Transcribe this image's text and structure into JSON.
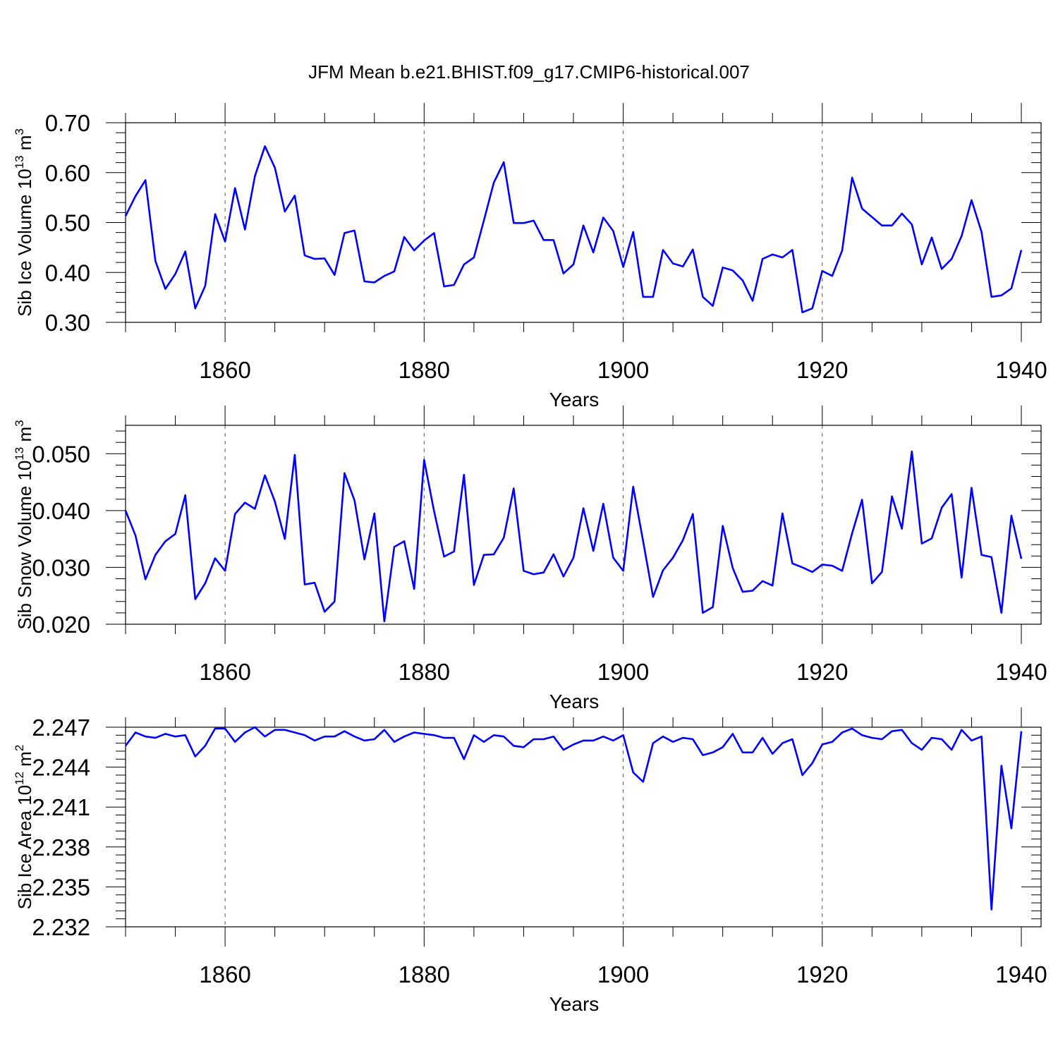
{
  "title": "JFM Mean b.e21.BHIST.f09_g17.CMIP6-historical.007",
  "chart_data": [
    {
      "type": "line",
      "ylabel": "Sib Ice Volume 10",
      "ylabel_exp": "13",
      "ylabel_unit": " m",
      "ylabel_unit_exp": "3",
      "xlabel": "Years",
      "xlim": [
        1850,
        1940
      ],
      "ylim": [
        0.3,
        0.7
      ],
      "yticks": [
        0.3,
        0.4,
        0.5,
        0.6,
        0.7
      ],
      "ytick_labels": [
        "0.30",
        "0.40",
        "0.50",
        "0.60",
        "0.70"
      ],
      "xticks": [
        1860,
        1880,
        1900,
        1920,
        1940
      ],
      "xtick_labels": [
        "1860",
        "1880",
        "1900",
        "1920",
        "1940"
      ],
      "grid": "dashed vertical at major x ticks",
      "color": "#0000ff",
      "x": [
        1850,
        1851,
        1852,
        1853,
        1854,
        1855,
        1856,
        1857,
        1858,
        1859,
        1860,
        1861,
        1862,
        1863,
        1864,
        1865,
        1866,
        1867,
        1868,
        1869,
        1870,
        1871,
        1872,
        1873,
        1874,
        1875,
        1876,
        1877,
        1878,
        1879,
        1880,
        1881,
        1882,
        1883,
        1884,
        1885,
        1886,
        1887,
        1888,
        1889,
        1890,
        1891,
        1892,
        1893,
        1894,
        1895,
        1896,
        1897,
        1898,
        1899,
        1900,
        1901,
        1902,
        1903,
        1904,
        1905,
        1906,
        1907,
        1908,
        1909,
        1910,
        1911,
        1912,
        1913,
        1914,
        1915,
        1916,
        1917,
        1918,
        1919,
        1920,
        1921,
        1922,
        1923,
        1924,
        1925,
        1926,
        1927,
        1928,
        1929,
        1930,
        1931,
        1932,
        1933,
        1934,
        1935,
        1936,
        1937,
        1938,
        1939,
        1940
      ],
      "values": [
        0.513,
        0.553,
        0.585,
        0.423,
        0.367,
        0.397,
        0.442,
        0.328,
        0.373,
        0.517,
        0.462,
        0.569,
        0.486,
        0.593,
        0.653,
        0.61,
        0.522,
        0.554,
        0.434,
        0.427,
        0.428,
        0.395,
        0.479,
        0.484,
        0.382,
        0.38,
        0.393,
        0.402,
        0.471,
        0.444,
        0.464,
        0.479,
        0.372,
        0.375,
        0.416,
        0.43,
        0.504,
        0.58,
        0.621,
        0.499,
        0.499,
        0.504,
        0.465,
        0.465,
        0.398,
        0.416,
        0.494,
        0.44,
        0.51,
        0.483,
        0.411,
        0.481,
        0.351,
        0.351,
        0.445,
        0.418,
        0.412,
        0.446,
        0.351,
        0.333,
        0.41,
        0.404,
        0.384,
        0.343,
        0.427,
        0.436,
        0.43,
        0.445,
        0.32,
        0.328,
        0.403,
        0.393,
        0.444,
        0.59,
        0.528,
        0.511,
        0.494,
        0.494,
        0.518,
        0.496,
        0.416,
        0.47,
        0.407,
        0.427,
        0.473,
        0.545,
        0.481,
        0.351,
        0.354,
        0.368,
        0.445
      ]
    },
    {
      "type": "line",
      "ylabel": "Sib Snow Volume 10",
      "ylabel_exp": "13",
      "ylabel_unit": " m",
      "ylabel_unit_exp": "3",
      "xlabel": "Years",
      "xlim": [
        1850,
        1940
      ],
      "ylim": [
        0.02,
        0.055
      ],
      "yticks": [
        0.02,
        0.03,
        0.04,
        0.05
      ],
      "ytick_labels": [
        "0.020",
        "0.030",
        "0.040",
        "0.050"
      ],
      "xticks": [
        1860,
        1880,
        1900,
        1920,
        1940
      ],
      "xtick_labels": [
        "1860",
        "1880",
        "1900",
        "1920",
        "1940"
      ],
      "grid": "dashed vertical at major x ticks",
      "color": "#0000ff",
      "x": [
        1850,
        1851,
        1852,
        1853,
        1854,
        1855,
        1856,
        1857,
        1858,
        1859,
        1860,
        1861,
        1862,
        1863,
        1864,
        1865,
        1866,
        1867,
        1868,
        1869,
        1870,
        1871,
        1872,
        1873,
        1874,
        1875,
        1876,
        1877,
        1878,
        1879,
        1880,
        1881,
        1882,
        1883,
        1884,
        1885,
        1886,
        1887,
        1888,
        1889,
        1890,
        1891,
        1892,
        1893,
        1894,
        1895,
        1896,
        1897,
        1898,
        1899,
        1900,
        1901,
        1902,
        1903,
        1904,
        1905,
        1906,
        1907,
        1908,
        1909,
        1910,
        1911,
        1912,
        1913,
        1914,
        1915,
        1916,
        1917,
        1918,
        1919,
        1920,
        1921,
        1922,
        1923,
        1924,
        1925,
        1926,
        1927,
        1928,
        1929,
        1930,
        1931,
        1932,
        1933,
        1934,
        1935,
        1936,
        1937,
        1938,
        1939,
        1940
      ],
      "values": [
        0.04,
        0.0356,
        0.0279,
        0.0322,
        0.0346,
        0.0359,
        0.0427,
        0.0244,
        0.0272,
        0.0316,
        0.0294,
        0.0394,
        0.0414,
        0.0403,
        0.0462,
        0.0416,
        0.035,
        0.0498,
        0.027,
        0.0273,
        0.0222,
        0.024,
        0.0466,
        0.0418,
        0.0314,
        0.0395,
        0.0205,
        0.0336,
        0.0346,
        0.0262,
        0.0489,
        0.0399,
        0.0319,
        0.0328,
        0.0463,
        0.0269,
        0.0322,
        0.0323,
        0.0352,
        0.0439,
        0.0294,
        0.0288,
        0.0291,
        0.0323,
        0.0284,
        0.0317,
        0.0404,
        0.0329,
        0.0412,
        0.0317,
        0.0294,
        0.0442,
        0.0346,
        0.0248,
        0.0295,
        0.0317,
        0.0348,
        0.0394,
        0.022,
        0.023,
        0.0373,
        0.0299,
        0.0257,
        0.0259,
        0.0276,
        0.0268,
        0.0395,
        0.0307,
        0.03,
        0.0292,
        0.0305,
        0.0303,
        0.0294,
        0.036,
        0.0419,
        0.0272,
        0.0292,
        0.0425,
        0.0368,
        0.0504,
        0.0342,
        0.0351,
        0.0405,
        0.0429,
        0.0282,
        0.044,
        0.0322,
        0.0318,
        0.022,
        0.0391,
        0.0315
      ]
    },
    {
      "type": "line",
      "ylabel": "Sib Ice Area 10",
      "ylabel_exp": "12",
      "ylabel_unit": " m",
      "ylabel_unit_exp": "2",
      "xlabel": "Years",
      "xlim": [
        1850,
        1940
      ],
      "ylim": [
        2.232,
        2.247
      ],
      "yticks": [
        2.232,
        2.235,
        2.238,
        2.241,
        2.244,
        2.247
      ],
      "ytick_labels": [
        "2.232",
        "2.235",
        "2.238",
        "2.241",
        "2.244",
        "2.247"
      ],
      "xticks": [
        1860,
        1880,
        1900,
        1920,
        1940
      ],
      "xtick_labels": [
        "1860",
        "1880",
        "1900",
        "1920",
        "1940"
      ],
      "grid": "dashed vertical at major x ticks",
      "color": "#0000ff",
      "x": [
        1850,
        1851,
        1852,
        1853,
        1854,
        1855,
        1856,
        1857,
        1858,
        1859,
        1860,
        1861,
        1862,
        1863,
        1864,
        1865,
        1866,
        1867,
        1868,
        1869,
        1870,
        1871,
        1872,
        1873,
        1874,
        1875,
        1876,
        1877,
        1878,
        1879,
        1880,
        1881,
        1882,
        1883,
        1884,
        1885,
        1886,
        1887,
        1888,
        1889,
        1890,
        1891,
        1892,
        1893,
        1894,
        1895,
        1896,
        1897,
        1898,
        1899,
        1900,
        1901,
        1902,
        1903,
        1904,
        1905,
        1906,
        1907,
        1908,
        1909,
        1910,
        1911,
        1912,
        1913,
        1914,
        1915,
        1916,
        1917,
        1918,
        1919,
        1920,
        1921,
        1922,
        1923,
        1924,
        1925,
        1926,
        1927,
        1928,
        1929,
        1930,
        1931,
        1932,
        1933,
        1934,
        1935,
        1936,
        1937,
        1938,
        1939,
        1940
      ],
      "values": [
        2.2456,
        2.2466,
        2.2463,
        2.2462,
        2.2465,
        2.2463,
        2.2464,
        2.2448,
        2.2456,
        2.2469,
        2.2469,
        2.2459,
        2.2466,
        2.247,
        2.2463,
        2.2468,
        2.2468,
        2.2466,
        2.2464,
        2.246,
        2.2463,
        2.2463,
        2.2467,
        2.2463,
        2.246,
        2.2461,
        2.2468,
        2.2459,
        2.2463,
        2.2466,
        2.2465,
        2.2464,
        2.2462,
        2.2462,
        2.2446,
        2.2464,
        2.2459,
        2.2464,
        2.2463,
        2.2456,
        2.2455,
        2.2461,
        2.2461,
        2.2463,
        2.2453,
        2.2457,
        2.246,
        2.246,
        2.2463,
        2.246,
        2.2464,
        2.2436,
        2.2429,
        2.2458,
        2.2463,
        2.2459,
        2.2462,
        2.2461,
        2.2449,
        2.2451,
        2.2455,
        2.2465,
        2.2451,
        2.2451,
        2.2462,
        2.245,
        2.2458,
        2.2461,
        2.2434,
        2.2443,
        2.2457,
        2.2459,
        2.2466,
        2.2469,
        2.2464,
        2.2462,
        2.2461,
        2.2467,
        2.2468,
        2.2458,
        2.2453,
        2.2462,
        2.2461,
        2.2453,
        2.2468,
        2.246,
        2.2463,
        2.2333,
        2.2441,
        2.2394,
        2.2467
      ]
    }
  ]
}
